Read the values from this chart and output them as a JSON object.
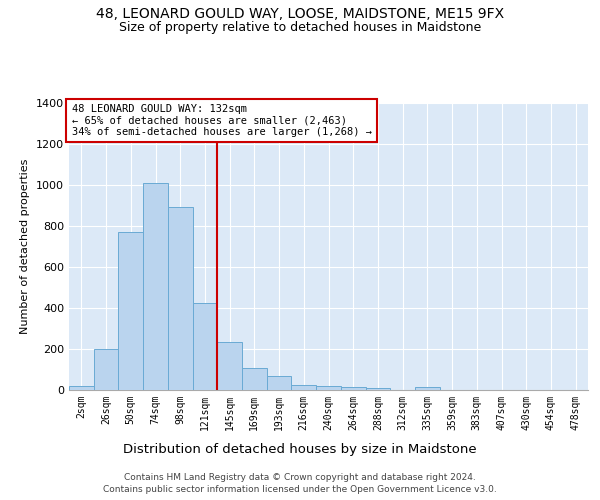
{
  "title_line1": "48, LEONARD GOULD WAY, LOOSE, MAIDSTONE, ME15 9FX",
  "title_line2": "Size of property relative to detached houses in Maidstone",
  "xlabel": "Distribution of detached houses by size in Maidstone",
  "ylabel": "Number of detached properties",
  "footnote1": "Contains HM Land Registry data © Crown copyright and database right 2024.",
  "footnote2": "Contains public sector information licensed under the Open Government Licence v3.0.",
  "bar_labels": [
    "2sqm",
    "26sqm",
    "50sqm",
    "74sqm",
    "98sqm",
    "121sqm",
    "145sqm",
    "169sqm",
    "193sqm",
    "216sqm",
    "240sqm",
    "264sqm",
    "288sqm",
    "312sqm",
    "335sqm",
    "359sqm",
    "383sqm",
    "407sqm",
    "430sqm",
    "454sqm",
    "478sqm"
  ],
  "bar_values": [
    20,
    200,
    770,
    1010,
    890,
    425,
    235,
    108,
    68,
    25,
    20,
    15,
    8,
    0,
    15,
    0,
    0,
    0,
    0,
    0,
    0
  ],
  "bar_color": "#bad4ee",
  "bar_edge_color": "#6aaad4",
  "vline_x": 5.5,
  "vline_color": "#cc0000",
  "annotation_text": "48 LEONARD GOULD WAY: 132sqm\n← 65% of detached houses are smaller (2,463)\n34% of semi-detached houses are larger (1,268) →",
  "annotation_box_edgecolor": "#cc0000",
  "annotation_bg_color": "#ffffff",
  "ylim": [
    0,
    1400
  ],
  "background_color": "#dce9f7",
  "grid_color": "#ffffff",
  "title_fontsize": 10,
  "subtitle_fontsize": 9,
  "ylabel_fontsize": 8,
  "xlabel_fontsize": 9.5,
  "tick_fontsize": 7,
  "annotation_fontsize": 7.5,
  "footnote_fontsize": 6.5
}
